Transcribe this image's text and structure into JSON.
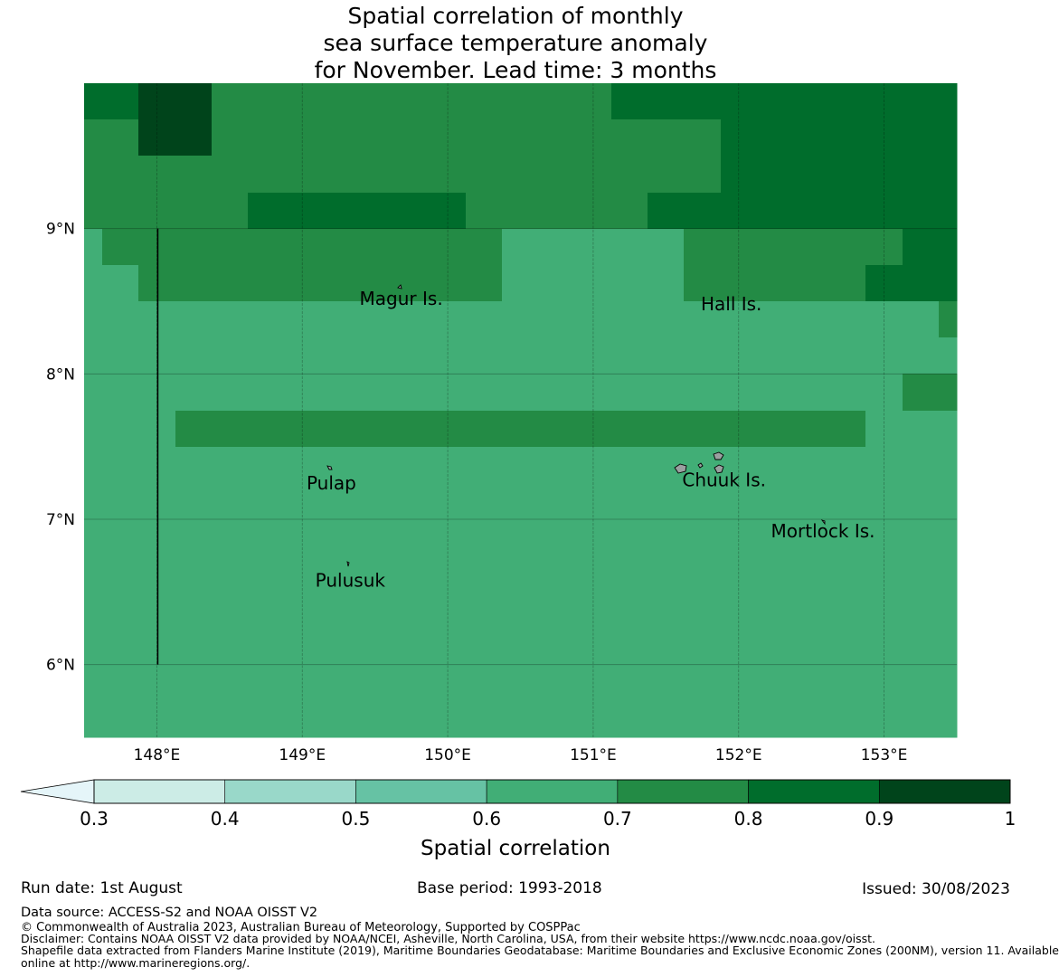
{
  "title_lines": [
    "Spatial correlation of monthly",
    "sea surface temperature anomaly",
    "for November. Lead time: 3 months"
  ],
  "chart_data": {
    "type": "heatmap",
    "lon_range": [
      147.5,
      153.5
    ],
    "lat_range": [
      5.5,
      10.0
    ],
    "grid_on": true,
    "x_ticks": [
      148,
      149,
      150,
      151,
      152,
      153
    ],
    "x_tick_labels": [
      "148°E",
      "149°E",
      "150°E",
      "151°E",
      "152°E",
      "153°E"
    ],
    "y_ticks": [
      6,
      7,
      8,
      9
    ],
    "y_tick_labels": [
      "6°N",
      "7°N",
      "8°N",
      "9°N"
    ],
    "cell_size_deg": 0.25,
    "correlation_bins": [
      0.3,
      0.4,
      0.5,
      0.6,
      0.7,
      0.8,
      0.9,
      1.0
    ],
    "bin_colors": [
      "#ccece6",
      "#99d8c9",
      "#66c2a4",
      "#41ae76",
      "#238b45",
      "#006d2c",
      "#00441b"
    ],
    "under_color": "#e5f5f9",
    "grid_rows_north_to_south": [
      "5566444444444445555555555",
      "4466444444444444445555555",
      "4444444444444444445555555",
      "4444455555544444555555555",
      "3444444444443333344444455",
      "3344444444443333344444555",
      "3333333333333333333333334",
      "3333333333333333333333333",
      "3333333333333333333333344",
      "3334444444444444444444333",
      "3333333333333333333333333",
      "3333333333333333333333333",
      "3333333333333333333333333",
      "3333333333333333333333333",
      "3333333333333333333333333",
      "3333333333333333333333333",
      "3333333333333333333333333",
      "3333333333333333333333333"
    ],
    "places": [
      {
        "name": "Magur Is.",
        "lon": 149.68,
        "lat": 8.52
      },
      {
        "name": "Hall Is.",
        "lon": 151.95,
        "lat": 8.48
      },
      {
        "name": "Pulap",
        "lon": 149.2,
        "lat": 7.25
      },
      {
        "name": "Chuuk Is.",
        "lon": 151.9,
        "lat": 7.27
      },
      {
        "name": "Mortlock Is.",
        "lon": 152.58,
        "lat": 6.92
      },
      {
        "name": "Pulusuk",
        "lon": 149.33,
        "lat": 6.58
      }
    ],
    "boundary_line": {
      "lon": 148.0,
      "lat_from": 6.0,
      "lat_to": 9.0
    },
    "colorbar": {
      "tick_labels": [
        "0.3",
        "0.4",
        "0.5",
        "0.6",
        "0.7",
        "0.8",
        "0.9",
        "1"
      ],
      "label": "Spatial correlation",
      "extend": "min"
    }
  },
  "footer": {
    "run_date": "Run date: 1st August",
    "base_period": "Base period: 1993-2018",
    "issued": "Issued: 30/08/2023",
    "data_source": "Data source: ACCESS-S2 and NOAA OISST V2",
    "copyright": "© Commonwealth of Australia 2023, Australian Bureau of Meteorology, Supported by COSPPac",
    "disclaimer": "Disclaimer: Contains NOAA OISST V2 data provided by NOAA/NCEI, Asheville, North Carolina, USA, from their website https://www.ncdc.noaa.gov/oisst.",
    "shapefile_line1": "Shapefile data extracted from Flanders Marine Institute (2019), Maritime Boundaries Geodatabase: Maritime Boundaries and Exclusive Economic Zones (200NM), version 11. Available",
    "shapefile_line2": "online at http://www.marineregions.org/."
  }
}
